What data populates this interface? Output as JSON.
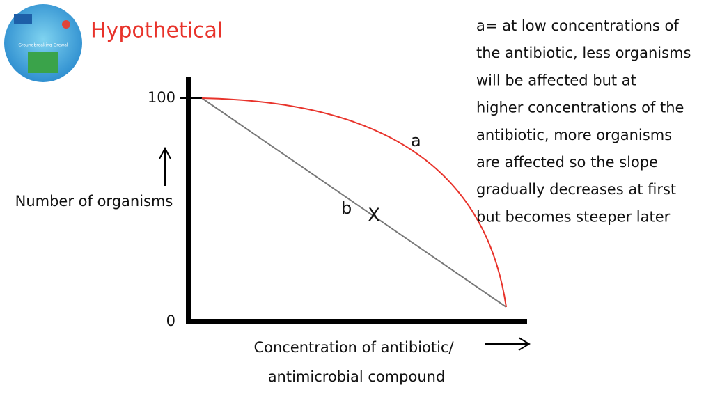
{
  "logo": {
    "text": "Groundbreaking Grewal"
  },
  "title": "Hypothetical",
  "y_axis": {
    "label": "Number of organisms",
    "ticks": [
      100,
      0
    ]
  },
  "x_axis": {
    "label_lines": [
      "Concentration of antibiotic/",
      "antimicrobial compound"
    ]
  },
  "curves": {
    "a": "a",
    "b": "b",
    "x_mark": "X"
  },
  "note": {
    "lines": [
      "a= at low concentrations of",
      "the antibiotic, less organisms",
      "will be affected but at",
      "higher concentrations of the",
      "antibiotic, more organisms",
      "are affected so the slope",
      "gradually decreases at first",
      "but becomes steeper later"
    ]
  }
}
